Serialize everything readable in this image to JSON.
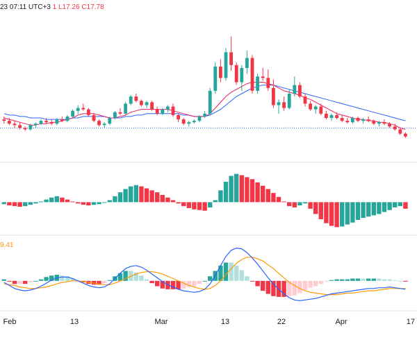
{
  "header": {
    "date_fragment": "23 07:11 UTC+3",
    "open_fragment": "1",
    "low": "L17.26",
    "close": "C17.78"
  },
  "macd_value": "9.41",
  "colors": {
    "up": "#26a69a",
    "down": "#f23645",
    "ma_red": "#e91e63",
    "ma_blue": "#2962ff",
    "hist_light_up": "#b2dfdb",
    "hist_light_down": "#ffcdd2",
    "signal": "#ff9800",
    "price_line": "#2962ff"
  },
  "chart_data": [
    {
      "type": "candlestick",
      "x_labels": [
        "Feb",
        "13",
        "Mar",
        "13",
        "22",
        "Apr",
        "17"
      ],
      "candles": [
        [
          17.6,
          17.8,
          17.3,
          17.5
        ],
        [
          17.5,
          17.7,
          17.2,
          17.3
        ],
        [
          17.3,
          17.5,
          17.0,
          17.2
        ],
        [
          17.2,
          17.4,
          16.9,
          17.0
        ],
        [
          17.0,
          17.1,
          16.8,
          16.9
        ],
        [
          16.9,
          17.3,
          16.8,
          17.2
        ],
        [
          17.2,
          17.4,
          17.0,
          17.3
        ],
        [
          17.3,
          17.6,
          17.2,
          17.5
        ],
        [
          17.5,
          17.7,
          17.3,
          17.4
        ],
        [
          17.4,
          17.6,
          17.2,
          17.3
        ],
        [
          17.3,
          17.7,
          17.2,
          17.6
        ],
        [
          17.6,
          17.8,
          17.4,
          17.5
        ],
        [
          17.5,
          17.9,
          17.4,
          17.8
        ],
        [
          17.8,
          18.3,
          17.7,
          18.2
        ],
        [
          18.2,
          18.6,
          18.0,
          18.4
        ],
        [
          18.4,
          18.7,
          18.2,
          18.3
        ],
        [
          18.3,
          18.4,
          17.8,
          17.9
        ],
        [
          17.9,
          18.0,
          17.4,
          17.5
        ],
        [
          17.5,
          17.6,
          17.1,
          17.2
        ],
        [
          17.2,
          17.4,
          17.0,
          17.3
        ],
        [
          17.3,
          17.8,
          17.2,
          17.7
        ],
        [
          17.7,
          18.2,
          17.6,
          18.1
        ],
        [
          18.1,
          18.4,
          17.9,
          18.0
        ],
        [
          18.0,
          18.8,
          17.9,
          18.7
        ],
        [
          18.7,
          19.3,
          18.6,
          19.2
        ],
        [
          19.2,
          19.4,
          18.8,
          18.9
        ],
        [
          18.9,
          19.0,
          18.5,
          18.6
        ],
        [
          18.6,
          18.9,
          18.4,
          18.8
        ],
        [
          18.8,
          18.9,
          18.2,
          18.3
        ],
        [
          18.3,
          18.5,
          17.9,
          18.0
        ],
        [
          18.0,
          18.4,
          17.9,
          18.3
        ],
        [
          18.3,
          18.6,
          18.1,
          18.5
        ],
        [
          18.5,
          18.7,
          17.8,
          17.9
        ],
        [
          17.9,
          18.0,
          17.4,
          17.6
        ],
        [
          17.6,
          17.7,
          17.2,
          17.3
        ],
        [
          17.3,
          17.5,
          17.1,
          17.4
        ],
        [
          17.4,
          17.6,
          17.3,
          17.5
        ],
        [
          17.5,
          17.9,
          17.4,
          17.8
        ],
        [
          17.8,
          18.2,
          17.7,
          18.0
        ],
        [
          18.0,
          19.8,
          17.9,
          19.6
        ],
        [
          19.6,
          21.6,
          19.4,
          21.3
        ],
        [
          21.3,
          21.8,
          20.2,
          20.5
        ],
        [
          20.5,
          22.6,
          20.3,
          22.3
        ],
        [
          22.3,
          23.4,
          21.0,
          21.4
        ],
        [
          21.4,
          21.6,
          20.0,
          20.2
        ],
        [
          20.2,
          21.4,
          19.6,
          21.2
        ],
        [
          21.2,
          22.4,
          20.8,
          21.9
        ],
        [
          21.9,
          22.1,
          19.4,
          19.6
        ],
        [
          19.6,
          20.8,
          19.4,
          20.6
        ],
        [
          20.6,
          21.2,
          20.3,
          20.5
        ],
        [
          20.5,
          21.1,
          19.6,
          19.8
        ],
        [
          19.8,
          20.4,
          18.4,
          18.6
        ],
        [
          18.6,
          19.0,
          18.0,
          18.8
        ],
        [
          18.8,
          19.2,
          18.2,
          18.4
        ],
        [
          18.4,
          19.7,
          18.3,
          19.4
        ],
        [
          19.4,
          20.6,
          19.2,
          20.0
        ],
        [
          20.0,
          20.2,
          19.1,
          19.2
        ],
        [
          19.2,
          19.4,
          18.5,
          18.7
        ],
        [
          18.7,
          18.9,
          18.2,
          18.3
        ],
        [
          18.3,
          18.6,
          18.0,
          18.5
        ],
        [
          18.5,
          18.7,
          17.9,
          18.0
        ],
        [
          18.0,
          18.2,
          17.6,
          17.7
        ],
        [
          17.7,
          18.0,
          17.5,
          17.9
        ],
        [
          17.9,
          18.1,
          17.6,
          17.7
        ],
        [
          17.7,
          17.9,
          17.4,
          17.5
        ],
        [
          17.5,
          17.7,
          17.3,
          17.4
        ],
        [
          17.4,
          17.8,
          17.3,
          17.7
        ],
        [
          17.7,
          17.8,
          17.4,
          17.5
        ],
        [
          17.5,
          17.7,
          17.3,
          17.6
        ],
        [
          17.6,
          17.8,
          17.4,
          17.5
        ],
        [
          17.5,
          17.6,
          17.2,
          17.3
        ],
        [
          17.3,
          17.5,
          17.1,
          17.4
        ],
        [
          17.4,
          17.6,
          17.2,
          17.3
        ],
        [
          17.3,
          17.4,
          17.0,
          17.1
        ],
        [
          17.1,
          17.3,
          16.8,
          16.9
        ],
        [
          16.9,
          17.0,
          16.5,
          16.6
        ],
        [
          16.6,
          16.7,
          16.3,
          16.4
        ]
      ],
      "ma_red": [
        17.7,
        17.6,
        17.5,
        17.4,
        17.3,
        17.2,
        17.2,
        17.3,
        17.3,
        17.4,
        17.4,
        17.5,
        17.6,
        17.7,
        17.9,
        18.0,
        18.0,
        18.0,
        17.9,
        17.8,
        17.7,
        17.7,
        17.8,
        17.9,
        18.1,
        18.2,
        18.3,
        18.3,
        18.3,
        18.3,
        18.3,
        18.3,
        18.2,
        18.1,
        18.0,
        17.9,
        17.8,
        17.8,
        17.8,
        18.0,
        18.4,
        18.8,
        19.2,
        19.5,
        19.7,
        19.9,
        20.1,
        20.2,
        20.2,
        20.2,
        20.1,
        20.0,
        19.8,
        19.6,
        19.5,
        19.4,
        19.3,
        19.1,
        19.0,
        18.8,
        18.6,
        18.4,
        18.2,
        18.0,
        17.9,
        17.8,
        17.7,
        17.6,
        17.6,
        17.5,
        17.5,
        17.4,
        17.4,
        17.3,
        17.2,
        17.0,
        16.9
      ],
      "ma_blue": [
        18.0,
        17.9,
        17.9,
        17.8,
        17.8,
        17.7,
        17.7,
        17.7,
        17.6,
        17.6,
        17.6,
        17.6,
        17.6,
        17.7,
        17.7,
        17.8,
        17.8,
        17.8,
        17.8,
        17.8,
        17.7,
        17.7,
        17.7,
        17.8,
        17.8,
        17.9,
        17.9,
        18.0,
        18.0,
        18.0,
        18.0,
        18.0,
        18.0,
        18.0,
        17.9,
        17.9,
        17.8,
        17.8,
        17.8,
        17.9,
        18.1,
        18.3,
        18.6,
        18.9,
        19.2,
        19.4,
        19.6,
        19.8,
        19.9,
        20.0,
        20.0,
        20.0,
        19.9,
        19.8,
        19.7,
        19.6,
        19.5,
        19.4,
        19.3,
        19.2,
        19.1,
        19.0,
        18.9,
        18.8,
        18.7,
        18.6,
        18.5,
        18.4,
        18.3,
        18.2,
        18.1,
        18.0,
        17.9,
        17.8,
        17.7,
        17.6,
        17.5
      ],
      "price_line": 17.0,
      "ylim": [
        16.0,
        24.5
      ]
    },
    {
      "type": "bar",
      "values": [
        -0.3,
        -0.5,
        -0.6,
        -0.7,
        -0.6,
        -0.4,
        -0.2,
        0.1,
        0.4,
        0.7,
        0.9,
        0.7,
        0.4,
        0.1,
        -0.2,
        -0.4,
        -0.5,
        -0.4,
        -0.3,
        -0.1,
        0.3,
        0.9,
        1.5,
        2.0,
        2.4,
        2.6,
        2.4,
        2.1,
        1.8,
        1.5,
        1.1,
        0.7,
        0.3,
        -0.2,
        -0.6,
        -0.9,
        -1.1,
        -1.2,
        -1.3,
        -0.8,
        0.3,
        1.8,
        3.1,
        4.0,
        4.3,
        4.1,
        3.8,
        3.5,
        3.0,
        2.5,
        2.0,
        1.4,
        0.8,
        0.1,
        -0.6,
        -0.8,
        -0.5,
        -0.2,
        -1.0,
        -1.8,
        -2.6,
        -3.2,
        -3.6,
        -3.8,
        -3.7,
        -3.4,
        -3.1,
        -2.7,
        -2.4,
        -2.2,
        -2.0,
        -1.8,
        -1.5,
        -1.2,
        -0.8,
        -0.6,
        -1.0
      ],
      "ylim": [
        -4.5,
        5.0
      ]
    },
    {
      "type": "macd",
      "macd": [
        -0.2,
        -0.6,
        -1.0,
        -1.2,
        -1.3,
        -1.2,
        -1.0,
        -0.7,
        -0.3,
        0.1,
        0.4,
        0.5,
        0.5,
        0.3,
        0.0,
        -0.3,
        -0.6,
        -0.8,
        -0.9,
        -0.8,
        -0.4,
        0.3,
        1.0,
        1.6,
        1.9,
        2.0,
        1.8,
        1.4,
        0.9,
        0.4,
        -0.1,
        -0.5,
        -0.8,
        -1.1,
        -1.3,
        -1.4,
        -1.5,
        -1.4,
        -1.1,
        -0.4,
        0.7,
        2.0,
        3.2,
        4.0,
        4.3,
        4.2,
        3.7,
        3.0,
        2.2,
        1.3,
        0.4,
        -0.4,
        -1.1,
        -1.7,
        -2.2,
        -2.5,
        -2.6,
        -2.5,
        -2.4,
        -2.3,
        -2.1,
        -1.9,
        -1.7,
        -1.6,
        -1.5,
        -1.4,
        -1.3,
        -1.2,
        -1.1,
        -1.0,
        -1.0,
        -0.9,
        -0.9,
        -0.8,
        -0.9,
        -1.0,
        -1.1
      ],
      "signal": [
        -0.4,
        -0.5,
        -0.6,
        -0.8,
        -0.9,
        -1.0,
        -1.0,
        -0.9,
        -0.8,
        -0.6,
        -0.4,
        -0.2,
        -0.1,
        0.0,
        0.0,
        -0.1,
        -0.2,
        -0.3,
        -0.4,
        -0.5,
        -0.5,
        -0.3,
        0.0,
        0.3,
        0.6,
        0.9,
        1.1,
        1.2,
        1.2,
        1.1,
        0.9,
        0.6,
        0.3,
        0.0,
        -0.3,
        -0.6,
        -0.8,
        -1.0,
        -1.1,
        -1.0,
        -0.6,
        0.0,
        0.8,
        1.6,
        2.3,
        2.8,
        3.1,
        3.1,
        2.9,
        2.6,
        2.1,
        1.6,
        1.0,
        0.4,
        -0.2,
        -0.6,
        -1.0,
        -1.3,
        -1.5,
        -1.6,
        -1.7,
        -1.8,
        -1.8,
        -1.8,
        -1.7,
        -1.6,
        -1.6,
        -1.5,
        -1.4,
        -1.3,
        -1.3,
        -1.2,
        -1.1,
        -1.0,
        -1.0,
        -1.0,
        -1.0
      ],
      "ylim": [
        -3.2,
        4.8
      ]
    }
  ]
}
